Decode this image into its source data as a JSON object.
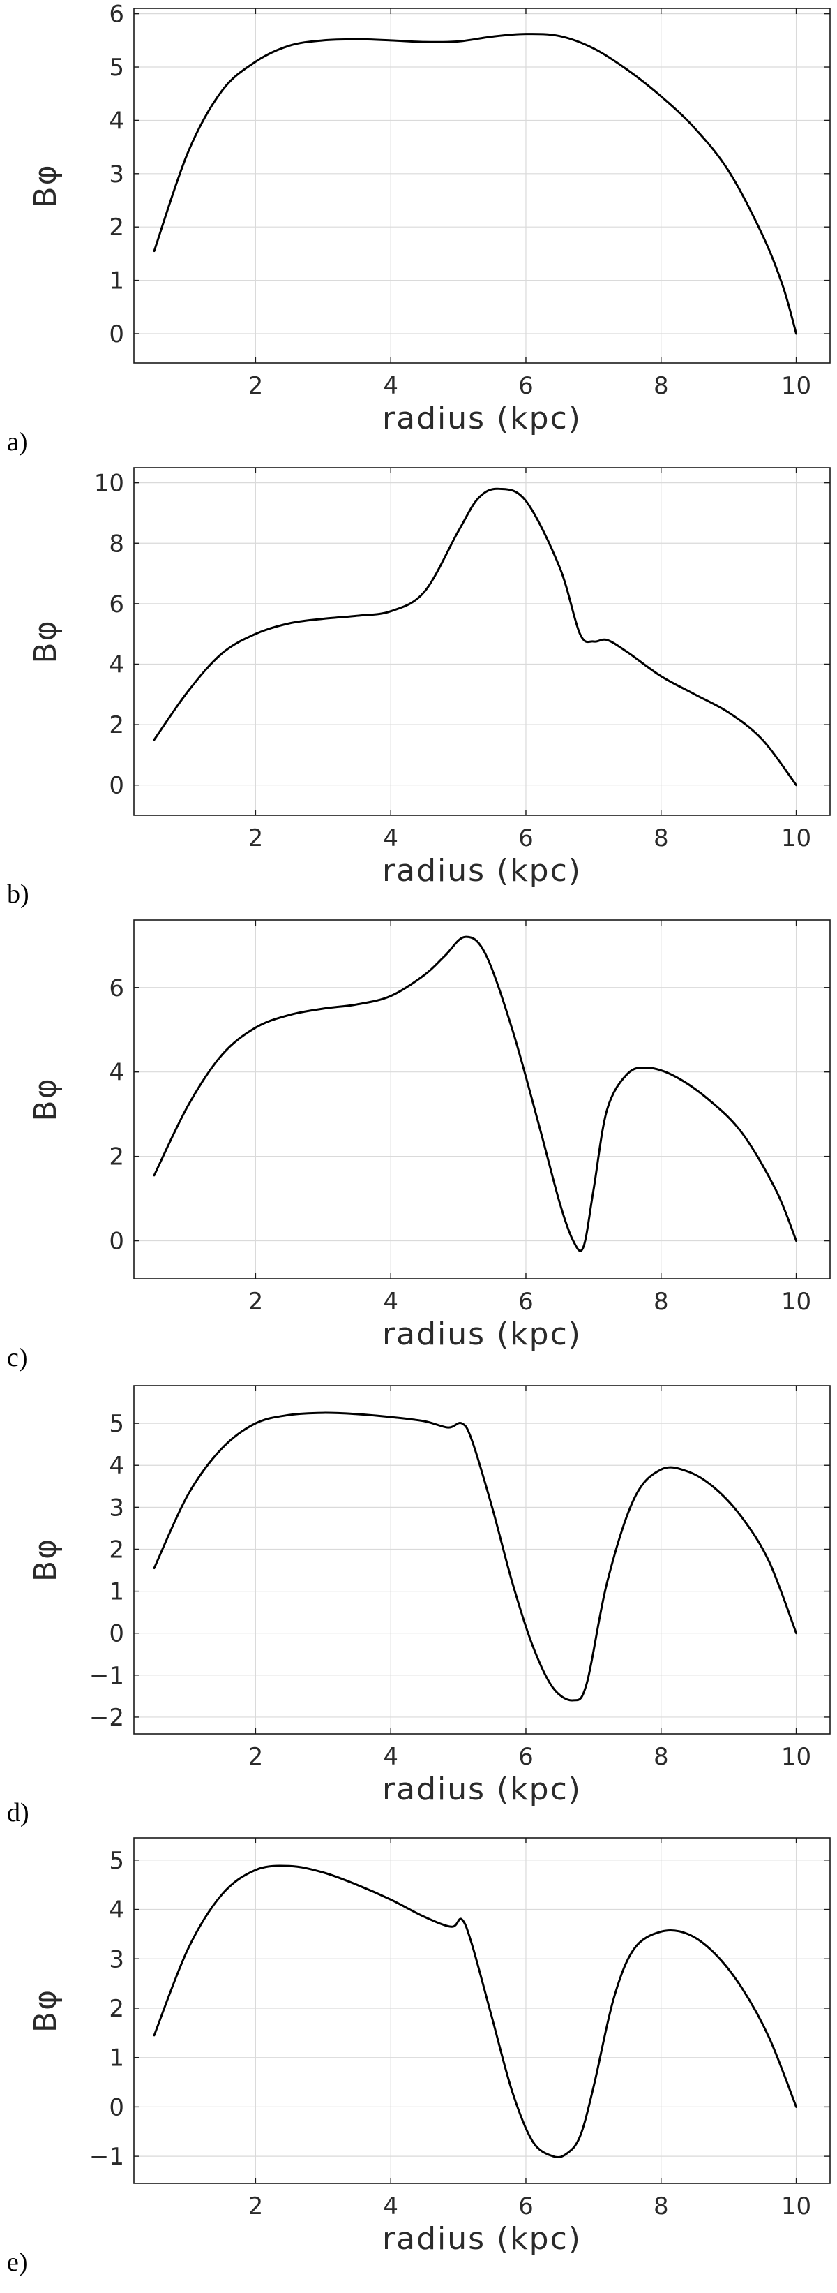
{
  "chart_data": [
    {
      "panel": "a)",
      "type": "line",
      "xlabel": "radius (kpc)",
      "ylabel": "Bφ",
      "xlim": [
        0.2,
        10.5
      ],
      "ylim": [
        -0.55,
        6.1
      ],
      "xticks": [
        2,
        4,
        6,
        8,
        10
      ],
      "yticks": [
        0,
        1,
        2,
        3,
        4,
        5,
        6
      ],
      "grid": true,
      "x": [
        0.5,
        1.0,
        1.5,
        2.0,
        2.5,
        3.0,
        3.5,
        4.0,
        4.5,
        5.0,
        5.5,
        6.0,
        6.5,
        7.0,
        7.5,
        8.0,
        8.5,
        9.0,
        9.5,
        9.8,
        10.0
      ],
      "y": [
        1.55,
        3.4,
        4.55,
        5.1,
        5.4,
        5.5,
        5.52,
        5.5,
        5.47,
        5.48,
        5.57,
        5.62,
        5.58,
        5.35,
        4.95,
        4.45,
        3.85,
        3.05,
        1.85,
        0.9,
        0.0
      ]
    },
    {
      "panel": "b)",
      "type": "line",
      "xlabel": "radius (kpc)",
      "ylabel": "Bφ",
      "xlim": [
        0.2,
        10.5
      ],
      "ylim": [
        -1.0,
        10.5
      ],
      "xticks": [
        2,
        4,
        6,
        8,
        10
      ],
      "yticks": [
        0,
        2,
        4,
        6,
        8,
        10
      ],
      "grid": true,
      "x": [
        0.5,
        1.0,
        1.5,
        2.0,
        2.5,
        3.0,
        3.5,
        4.0,
        4.5,
        5.0,
        5.3,
        5.6,
        6.0,
        6.5,
        6.8,
        7.0,
        7.2,
        7.5,
        8.0,
        8.5,
        9.0,
        9.5,
        10.0
      ],
      "y": [
        1.5,
        3.1,
        4.35,
        5.0,
        5.35,
        5.5,
        5.6,
        5.75,
        6.4,
        8.4,
        9.5,
        9.8,
        9.4,
        7.2,
        5.0,
        4.75,
        4.8,
        4.4,
        3.6,
        3.0,
        2.4,
        1.5,
        0.0
      ]
    },
    {
      "panel": "c)",
      "type": "line",
      "xlabel": "radius (kpc)",
      "ylabel": "Bφ",
      "xlim": [
        0.2,
        10.5
      ],
      "ylim": [
        -0.9,
        7.6
      ],
      "xticks": [
        2,
        4,
        6,
        8,
        10
      ],
      "yticks": [
        0,
        2,
        4,
        6
      ],
      "grid": true,
      "x": [
        0.5,
        1.0,
        1.5,
        2.0,
        2.5,
        3.0,
        3.5,
        4.0,
        4.5,
        4.8,
        5.1,
        5.4,
        5.8,
        6.2,
        6.5,
        6.7,
        6.85,
        7.0,
        7.2,
        7.5,
        7.8,
        8.2,
        8.7,
        9.2,
        9.7,
        10.0
      ],
      "y": [
        1.55,
        3.2,
        4.4,
        5.05,
        5.35,
        5.5,
        5.6,
        5.8,
        6.3,
        6.75,
        7.2,
        6.8,
        5.0,
        2.7,
        0.9,
        0.0,
        -0.15,
        1.2,
        3.1,
        3.95,
        4.1,
        3.9,
        3.35,
        2.55,
        1.2,
        0.0
      ]
    },
    {
      "panel": "d)",
      "type": "line",
      "xlabel": "radius (kpc)",
      "ylabel": "Bφ",
      "xlim": [
        0.2,
        10.5
      ],
      "ylim": [
        -2.4,
        5.9
      ],
      "xticks": [
        2,
        4,
        6,
        8,
        10
      ],
      "yticks": [
        -2,
        -1,
        0,
        1,
        2,
        3,
        4,
        5
      ],
      "grid": true,
      "x": [
        0.5,
        1.0,
        1.5,
        2.0,
        2.5,
        3.0,
        3.5,
        4.0,
        4.5,
        4.85,
        5.05,
        5.2,
        5.5,
        5.8,
        6.1,
        6.4,
        6.7,
        6.9,
        7.2,
        7.6,
        8.0,
        8.4,
        8.8,
        9.2,
        9.6,
        10.0
      ],
      "y": [
        1.55,
        3.3,
        4.4,
        5.0,
        5.2,
        5.25,
        5.22,
        5.15,
        5.05,
        4.9,
        5.0,
        4.6,
        3.0,
        1.2,
        -0.3,
        -1.3,
        -1.6,
        -1.2,
        1.2,
        3.2,
        3.9,
        3.85,
        3.45,
        2.75,
        1.7,
        0.0
      ]
    },
    {
      "panel": "e)",
      "type": "line",
      "xlabel": "radius (kpc)",
      "ylabel": "Bφ",
      "xlim": [
        0.2,
        10.5
      ],
      "ylim": [
        -1.55,
        5.45
      ],
      "xticks": [
        2,
        4,
        6,
        8,
        10
      ],
      "yticks": [
        -1,
        0,
        1,
        2,
        3,
        4,
        5
      ],
      "grid": true,
      "x": [
        0.5,
        1.0,
        1.5,
        2.0,
        2.5,
        3.0,
        3.5,
        4.0,
        4.5,
        4.9,
        5.05,
        5.2,
        5.5,
        5.8,
        6.1,
        6.4,
        6.6,
        6.8,
        7.0,
        7.3,
        7.6,
        8.0,
        8.4,
        8.8,
        9.2,
        9.6,
        10.0
      ],
      "y": [
        1.45,
        3.2,
        4.3,
        4.8,
        4.88,
        4.75,
        4.5,
        4.2,
        3.85,
        3.65,
        3.8,
        3.3,
        1.8,
        0.3,
        -0.7,
        -1.0,
        -0.95,
        -0.6,
        0.4,
        2.2,
        3.2,
        3.55,
        3.5,
        3.1,
        2.4,
        1.4,
        0.0
      ]
    }
  ]
}
